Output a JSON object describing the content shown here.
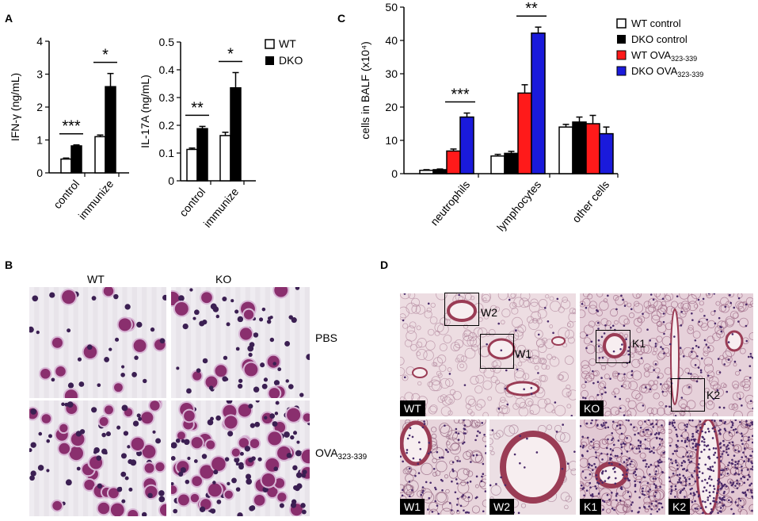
{
  "panel_labels": {
    "a": "A",
    "b": "B",
    "c": "C",
    "d": "D"
  },
  "chart_data": [
    {
      "type": "bar",
      "panel": "A",
      "ylabel": "IFN-γ (ng/mL)",
      "categories": [
        "control",
        "immunize"
      ],
      "yticks": [
        "0",
        "1",
        "2",
        "3",
        "4"
      ],
      "ylim": [
        0,
        4
      ],
      "series": [
        {
          "name": "WT",
          "color": "#ffffff",
          "values": [
            0.42,
            1.1
          ],
          "errors": [
            0.03,
            0.05
          ]
        },
        {
          "name": "DKO",
          "color": "#000000",
          "values": [
            0.82,
            2.62
          ],
          "errors": [
            0.03,
            0.4
          ]
        }
      ],
      "significance": [
        "***",
        "*"
      ]
    },
    {
      "type": "bar",
      "panel": "A",
      "ylabel": "IL-17A (ng/mL)",
      "categories": [
        "control",
        "immunize"
      ],
      "yticks": [
        "0",
        "0.1",
        "0.2",
        "0.3",
        "0.4",
        "0.5"
      ],
      "ylim": [
        0,
        0.5
      ],
      "series": [
        {
          "name": "WT",
          "color": "#ffffff",
          "values": [
            0.113,
            0.163
          ],
          "errors": [
            0.005,
            0.012
          ]
        },
        {
          "name": "DKO",
          "color": "#000000",
          "values": [
            0.188,
            0.335
          ],
          "errors": [
            0.008,
            0.055
          ]
        }
      ],
      "significance": [
        "**",
        "*"
      ]
    },
    {
      "type": "bar",
      "panel": "C",
      "ylabel": "cells in BALF (x10⁴)",
      "categories": [
        "neutrophils",
        "lymphocytes",
        "other cells"
      ],
      "yticks": [
        "0",
        "10",
        "20",
        "30",
        "40",
        "50"
      ],
      "ylim": [
        0,
        50
      ],
      "series": [
        {
          "name": "WT control",
          "color": "#ffffff",
          "values": [
            1.0,
            5.3,
            14.0
          ],
          "errors": [
            0.2,
            0.5,
            0.8
          ]
        },
        {
          "name": "DKO control",
          "color": "#000000",
          "values": [
            1.2,
            6.1,
            15.5
          ],
          "errors": [
            0.2,
            0.6,
            1.5
          ]
        },
        {
          "name": "WT OVA323-339",
          "color": "#ff1a1a",
          "values": [
            6.8,
            24.2,
            15.0
          ],
          "errors": [
            0.6,
            2.5,
            2.5
          ]
        },
        {
          "name": "DKO OVA323-339",
          "color": "#1a1adb",
          "values": [
            17.0,
            42.2,
            12.0
          ],
          "errors": [
            1.2,
            1.8,
            2.0
          ]
        }
      ],
      "significance": [
        "***",
        "**",
        ""
      ]
    }
  ],
  "legend_a": {
    "wt": "WT",
    "dko": "DKO"
  },
  "legend_c": {
    "items": [
      {
        "label": "WT control",
        "sub": ""
      },
      {
        "label": "DKO control",
        "sub": ""
      },
      {
        "label": "WT OVA",
        "sub": "323-339"
      },
      {
        "label": "DKO OVA",
        "sub": "323-339"
      }
    ]
  },
  "panel_b": {
    "col_wt": "WT",
    "col_ko": "KO",
    "row_pbs": "PBS",
    "row_ova": "OVA",
    "row_ova_sub": "323-339"
  },
  "panel_d": {
    "wt": "WT",
    "ko": "KO",
    "w1": "W1",
    "w2": "W2",
    "k1": "K1",
    "k2": "K2"
  }
}
